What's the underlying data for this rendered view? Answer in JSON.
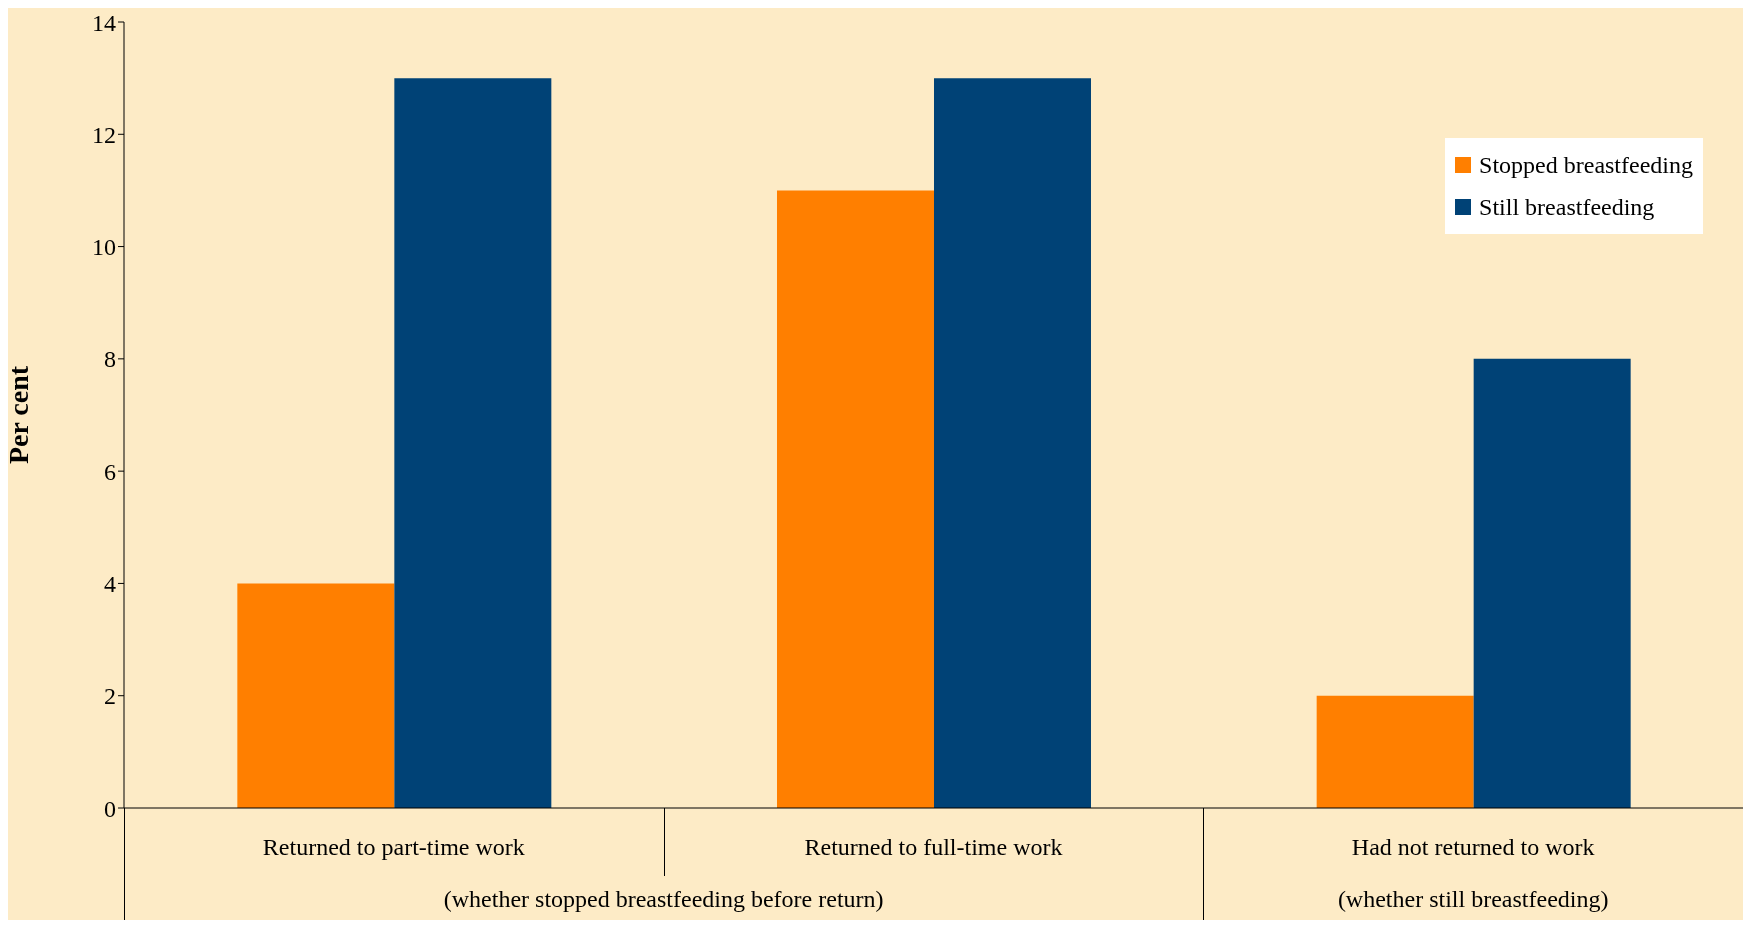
{
  "chart_data": {
    "type": "bar",
    "ylabel": "Per cent",
    "categories": [
      "Returned to part-time work",
      "Returned to full-time work",
      "Had not returned to work"
    ],
    "series": [
      {
        "name": "Stopped breastfeeding",
        "color": "#ff7f00",
        "values": [
          4,
          11,
          2
        ]
      },
      {
        "name": "Still breastfeeding",
        "color": "#004276",
        "values": [
          13,
          13,
          8
        ]
      }
    ],
    "ylim": [
      0,
      14
    ],
    "yticks": [
      0,
      2,
      4,
      6,
      8,
      10,
      12,
      14
    ],
    "grid": false,
    "legend": "top right",
    "annotations": [
      "(whether stopped breastfeeding before return)",
      "(whether still breastfeeding)"
    ]
  }
}
